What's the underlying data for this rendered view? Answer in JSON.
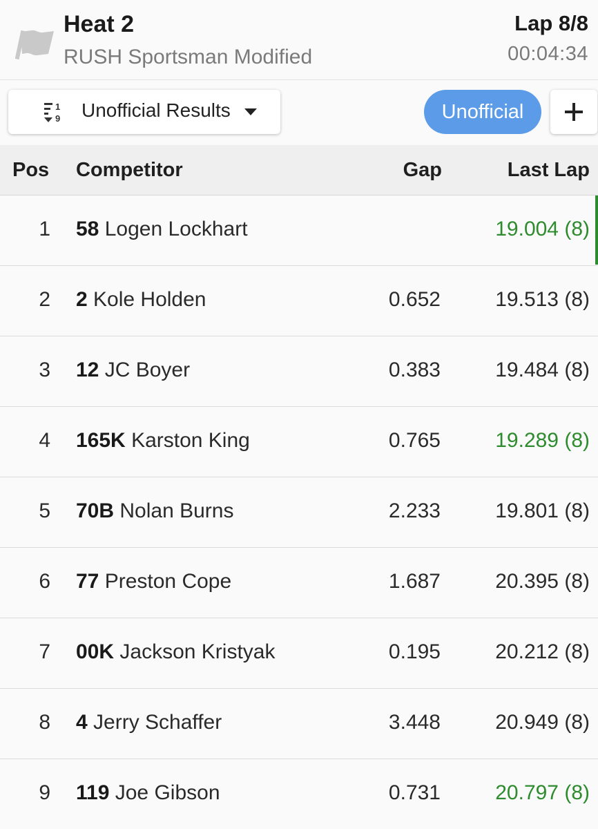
{
  "header": {
    "flag_icon": "checkered-flag-icon",
    "title": "Heat 2",
    "class_name": "RUSH Sportsman Modified",
    "lap": "Lap 8/8",
    "clock": "00:04:34"
  },
  "toolbar": {
    "sort_icon": "sort-numeric-icon",
    "results_label": "Unofficial Results",
    "status": "Unofficial",
    "add_icon": "plus-icon"
  },
  "colors": {
    "accent": "#5b9be8",
    "best_lap": "#2e8b2e"
  },
  "table": {
    "headers": {
      "pos": "Pos",
      "competitor": "Competitor",
      "gap": "Gap",
      "last_lap": "Last Lap"
    },
    "rows": [
      {
        "pos": "1",
        "number": "58",
        "name": "Logen Lockhart",
        "gap": "",
        "last_lap": "19.004 (8)",
        "best": true,
        "leader": true
      },
      {
        "pos": "2",
        "number": "2",
        "name": "Kole Holden",
        "gap": "0.652",
        "last_lap": "19.513 (8)",
        "best": false
      },
      {
        "pos": "3",
        "number": "12",
        "name": "JC Boyer",
        "gap": "0.383",
        "last_lap": "19.484 (8)",
        "best": false
      },
      {
        "pos": "4",
        "number": "165K",
        "name": "Karston King",
        "gap": "0.765",
        "last_lap": "19.289 (8)",
        "best": true
      },
      {
        "pos": "5",
        "number": "70B",
        "name": "Nolan Burns",
        "gap": "2.233",
        "last_lap": "19.801 (8)",
        "best": false
      },
      {
        "pos": "6",
        "number": "77",
        "name": "Preston Cope",
        "gap": "1.687",
        "last_lap": "20.395 (8)",
        "best": false
      },
      {
        "pos": "7",
        "number": "00K",
        "name": "Jackson Kristyak",
        "gap": "0.195",
        "last_lap": "20.212 (8)",
        "best": false
      },
      {
        "pos": "8",
        "number": "4",
        "name": "Jerry Schaffer",
        "gap": "3.448",
        "last_lap": "20.949 (8)",
        "best": false
      },
      {
        "pos": "9",
        "number": "119",
        "name": "Joe Gibson",
        "gap": "0.731",
        "last_lap": "20.797 (8)",
        "best": true
      }
    ]
  }
}
